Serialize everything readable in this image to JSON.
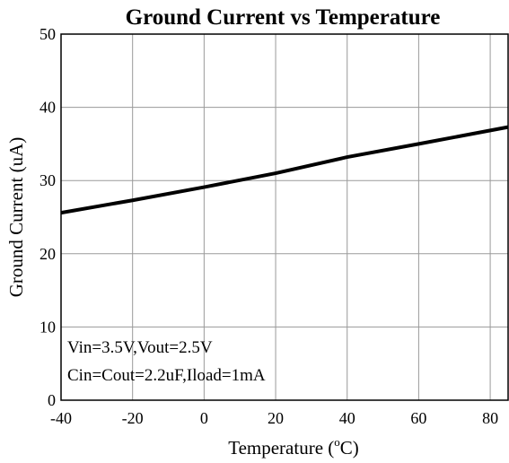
{
  "chart_data": {
    "type": "line",
    "title": "Ground Current vs Temperature",
    "xlabel_main": "Temperature (",
    "xlabel_sup": "o",
    "xlabel_unit": "C)",
    "ylabel": "Ground Current (uA)",
    "xlim": [
      -40,
      85
    ],
    "ylim": [
      0,
      50
    ],
    "xticks": [
      -40,
      -20,
      0,
      20,
      40,
      60,
      80
    ],
    "yticks": [
      0,
      10,
      20,
      30,
      40,
      50
    ],
    "grid": true,
    "annotations": [
      "Vin=3.5V,Vout=2.5V",
      "Cin=Cout=2.2uF,Iload=1mA"
    ],
    "series": [
      {
        "x": [
          -40,
          -20,
          0,
          20,
          40,
          60,
          85
        ],
        "y": [
          25.6,
          27.3,
          29.1,
          31.0,
          33.2,
          35.0,
          37.3
        ]
      }
    ]
  }
}
